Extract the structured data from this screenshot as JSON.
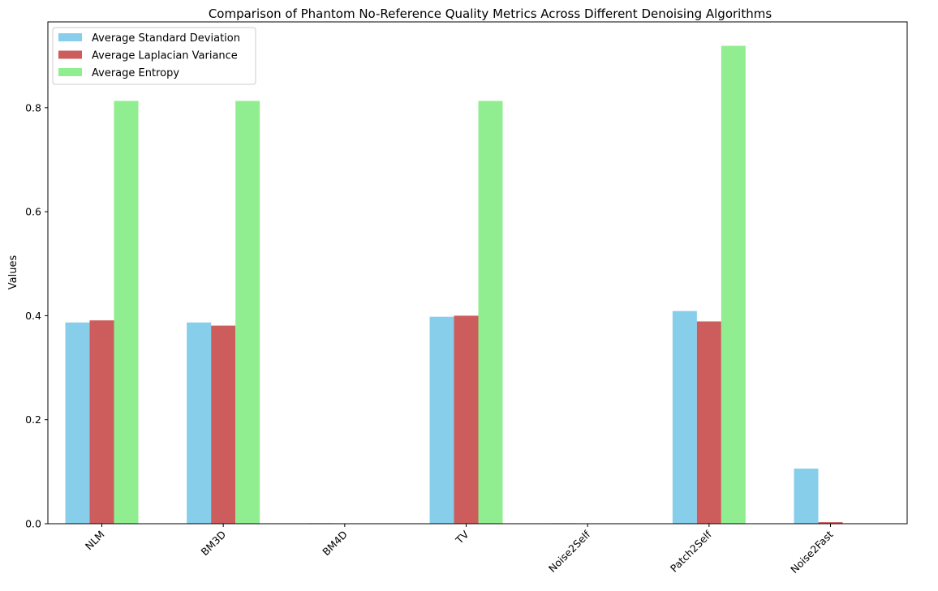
{
  "chart_data": {
    "type": "bar",
    "title": "Comparison of Phantom No-Reference Quality Metrics Across Different Denoising Algorithms",
    "xlabel": "",
    "ylabel": "Values",
    "categories": [
      "NLM",
      "BM3D",
      "BM4D",
      "TV",
      "Noise2Self",
      "Patch2Self",
      "Noise2Fast"
    ],
    "series": [
      {
        "name": "Average Standard Deviation",
        "color": "#87CEEB",
        "values": [
          0.387,
          0.387,
          0.001,
          0.398,
          0.001,
          0.409,
          0.106
        ]
      },
      {
        "name": "Average Laplacian Variance",
        "color": "#CD5C5C",
        "values": [
          0.391,
          0.381,
          0.0,
          0.4,
          0.0,
          0.389,
          0.003
        ]
      },
      {
        "name": "Average Entropy",
        "color": "#90EE90",
        "values": [
          0.813,
          0.813,
          0.0,
          0.813,
          0.0,
          0.919,
          0.0
        ]
      }
    ],
    "ylim": [
      0,
      0.965
    ],
    "yticks": [
      "0.0",
      "0.2",
      "0.4",
      "0.6",
      "0.8"
    ],
    "ytick_values": [
      0,
      0.2,
      0.4,
      0.6,
      0.8
    ],
    "legend_position": "upper-left",
    "grid": false,
    "xtick_rotation_deg": 45
  }
}
